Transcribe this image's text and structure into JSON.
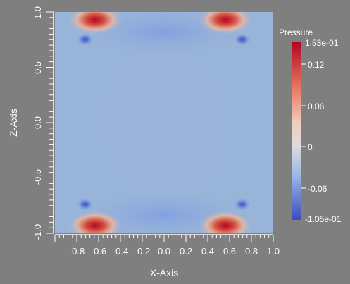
{
  "chart_data": {
    "type": "heatmap",
    "title": "",
    "xlabel": "X-Axis",
    "ylabel": "Z-Axis",
    "xlim": [
      -1.0,
      1.0
    ],
    "ylim": [
      -1.0,
      1.0
    ],
    "x_ticks": [
      "-0.8",
      "-0.6",
      "-0.4",
      "-0.2",
      "0.0",
      "0.2",
      "0.4",
      "0.6",
      "0.8",
      "1.0"
    ],
    "y_ticks": [
      "1.0",
      "0.5",
      "0.0",
      "-0.5",
      "-1.0"
    ],
    "colorbar": {
      "title": "Pressure",
      "min": -0.105,
      "max": 0.153,
      "ticks": [
        "1.53e-01",
        "0.12",
        "0.06",
        "0",
        "-0.06",
        "-1.05e-01"
      ],
      "colormap": "cool-to-warm"
    },
    "background_value": 0
  }
}
